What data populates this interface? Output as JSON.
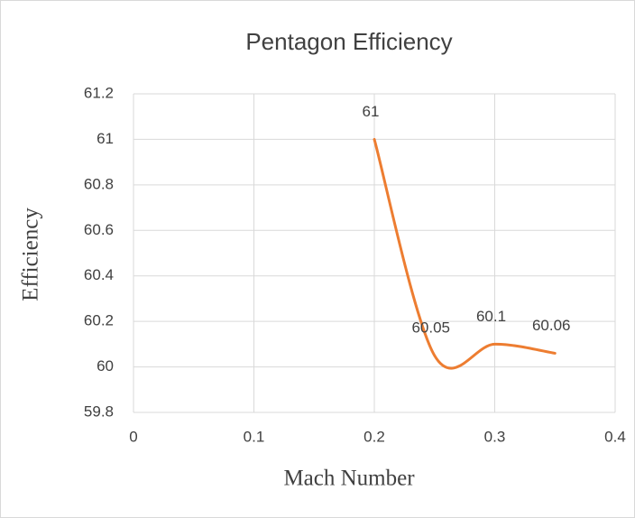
{
  "chart_data": {
    "type": "line",
    "smooth": true,
    "title": "Pentagon Efficiency",
    "xlabel": "Mach Number",
    "ylabel": "Efficiency",
    "x": [
      0.2,
      0.25,
      0.3,
      0.35
    ],
    "series": [
      {
        "color": "#ed7d31",
        "values": [
          61,
          60.05,
          60.1,
          60.06
        ]
      }
    ],
    "xlim": [
      0,
      0.4
    ],
    "xticks": [
      0,
      0.1,
      0.2,
      0.3,
      0.4
    ],
    "ylim": [
      59.8,
      61.2
    ],
    "yticks": [
      59.8,
      60,
      60.2,
      60.4,
      60.6,
      60.8,
      61,
      61.2
    ],
    "grid": true,
    "data_labels": true
  }
}
